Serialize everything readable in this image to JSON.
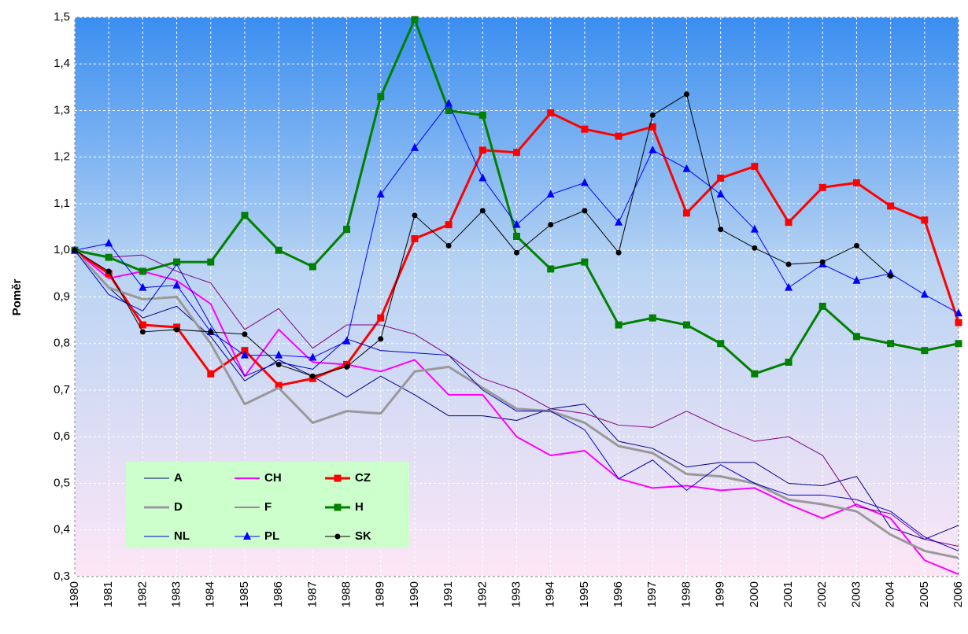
{
  "chart_data": {
    "type": "line",
    "y_label": "Poměr",
    "categories": [
      "1980",
      "1981",
      "1982",
      "1983",
      "1984",
      "1985",
      "1986",
      "1987",
      "1988",
      "1989",
      "1990",
      "1991",
      "1992",
      "1993",
      "1994",
      "1995",
      "1996",
      "1997",
      "1998",
      "1999",
      "2000",
      "2001",
      "2002",
      "2003",
      "2004",
      "2005",
      "2006"
    ],
    "ylim": [
      0.3,
      1.5
    ],
    "yticks": [
      {
        "value": 0.3,
        "label": "0,3"
      },
      {
        "value": 0.4,
        "label": "0,4"
      },
      {
        "value": 0.5,
        "label": "0,5"
      },
      {
        "value": 0.6,
        "label": "0,6"
      },
      {
        "value": 0.7,
        "label": "0,7"
      },
      {
        "value": 0.8,
        "label": "0,8"
      },
      {
        "value": 0.9,
        "label": "0,9"
      },
      {
        "value": 1.0,
        "label": "1,0"
      },
      {
        "value": 1.1,
        "label": "1,1"
      },
      {
        "value": 1.2,
        "label": "1,2"
      },
      {
        "value": 1.3,
        "label": "1,3"
      },
      {
        "value": 1.4,
        "label": "1,4"
      },
      {
        "value": 1.5,
        "label": "1,5"
      }
    ],
    "grid": true,
    "legend": "lower left",
    "series": [
      {
        "name": "A",
        "color": "#000080",
        "width": 1,
        "marker": "none",
        "values": [
          1.0,
          0.92,
          0.855,
          0.88,
          0.815,
          0.72,
          0.765,
          0.73,
          0.685,
          0.73,
          0.69,
          0.645,
          0.645,
          0.635,
          0.66,
          0.67,
          0.59,
          0.575,
          0.535,
          0.545,
          0.545,
          0.5,
          0.495,
          0.515,
          0.405,
          0.38,
          0.41
        ]
      },
      {
        "name": "CH",
        "color": "#ff00ff",
        "width": 2,
        "marker": "none",
        "values": [
          1.0,
          0.94,
          0.955,
          0.935,
          0.885,
          0.73,
          0.83,
          0.76,
          0.755,
          0.74,
          0.765,
          0.69,
          0.69,
          0.6,
          0.56,
          0.57,
          0.51,
          0.49,
          0.495,
          0.485,
          0.49,
          0.455,
          0.425,
          0.455,
          0.425,
          0.335,
          0.305
        ]
      },
      {
        "name": "CZ",
        "color": "#ff0000",
        "width": 3,
        "marker": "square",
        "values": [
          1.0,
          0.95,
          0.84,
          0.835,
          0.735,
          0.785,
          0.71,
          0.725,
          0.755,
          0.855,
          1.025,
          1.055,
          1.215,
          1.21,
          1.295,
          1.26,
          1.245,
          1.265,
          1.08,
          1.155,
          1.18,
          1.06,
          1.135,
          1.145,
          1.095,
          1.065,
          0.845
        ]
      },
      {
        "name": "D",
        "color": "#999999",
        "width": 3,
        "marker": "none",
        "values": [
          1.0,
          0.92,
          0.895,
          0.9,
          0.8,
          0.67,
          0.705,
          0.63,
          0.655,
          0.65,
          0.74,
          0.75,
          0.705,
          0.66,
          0.655,
          0.63,
          0.58,
          0.565,
          0.52,
          0.515,
          0.5,
          0.465,
          0.455,
          0.44,
          0.39,
          0.355,
          0.34
        ]
      },
      {
        "name": "F",
        "color": "#800080",
        "width": 1,
        "marker": "none",
        "values": [
          1.0,
          0.985,
          0.99,
          0.955,
          0.93,
          0.83,
          0.875,
          0.79,
          0.84,
          0.84,
          0.82,
          0.775,
          0.725,
          0.7,
          0.66,
          0.65,
          0.625,
          0.62,
          0.655,
          0.62,
          0.59,
          0.6,
          0.56,
          0.45,
          0.435,
          0.38,
          0.365
        ]
      },
      {
        "name": "H",
        "color": "#008000",
        "width": 3,
        "marker": "square",
        "values": [
          1.0,
          0.985,
          0.955,
          0.975,
          0.975,
          1.075,
          1.0,
          0.965,
          1.045,
          1.33,
          1.495,
          1.3,
          1.29,
          1.03,
          0.96,
          0.975,
          0.84,
          0.855,
          0.84,
          0.8,
          0.735,
          0.76,
          0.88,
          0.815,
          0.8,
          0.785,
          0.8
        ]
      },
      {
        "name": "NL",
        "color": "#0000cc",
        "width": 1,
        "marker": "none",
        "values": [
          1.0,
          0.905,
          0.87,
          0.97,
          0.84,
          0.73,
          0.76,
          0.745,
          0.81,
          0.785,
          0.78,
          0.775,
          0.7,
          0.655,
          0.655,
          0.615,
          0.51,
          0.55,
          0.485,
          0.54,
          0.5,
          0.475,
          0.475,
          0.465,
          0.44,
          0.385,
          0.355
        ]
      },
      {
        "name": "PL",
        "color": "#0000ff",
        "width": 1,
        "marker": "triangle",
        "values": [
          1.0,
          1.015,
          0.92,
          0.925,
          0.825,
          0.775,
          0.775,
          0.77,
          0.805,
          1.12,
          1.22,
          1.315,
          1.155,
          1.055,
          1.12,
          1.145,
          1.06,
          1.215,
          1.175,
          1.12,
          1.045,
          0.92,
          0.97,
          0.935,
          0.95,
          0.905,
          0.865
        ]
      },
      {
        "name": "SK",
        "color": "#000000",
        "width": 1,
        "marker": "diamond",
        "values": [
          1.0,
          0.955,
          0.825,
          0.83,
          0.825,
          0.82,
          0.755,
          0.73,
          0.75,
          0.81,
          1.075,
          1.01,
          1.085,
          0.995,
          1.055,
          1.085,
          0.995,
          1.29,
          1.335,
          1.045,
          1.005,
          0.97,
          0.975,
          1.01,
          0.945,
          null,
          null
        ]
      }
    ]
  }
}
